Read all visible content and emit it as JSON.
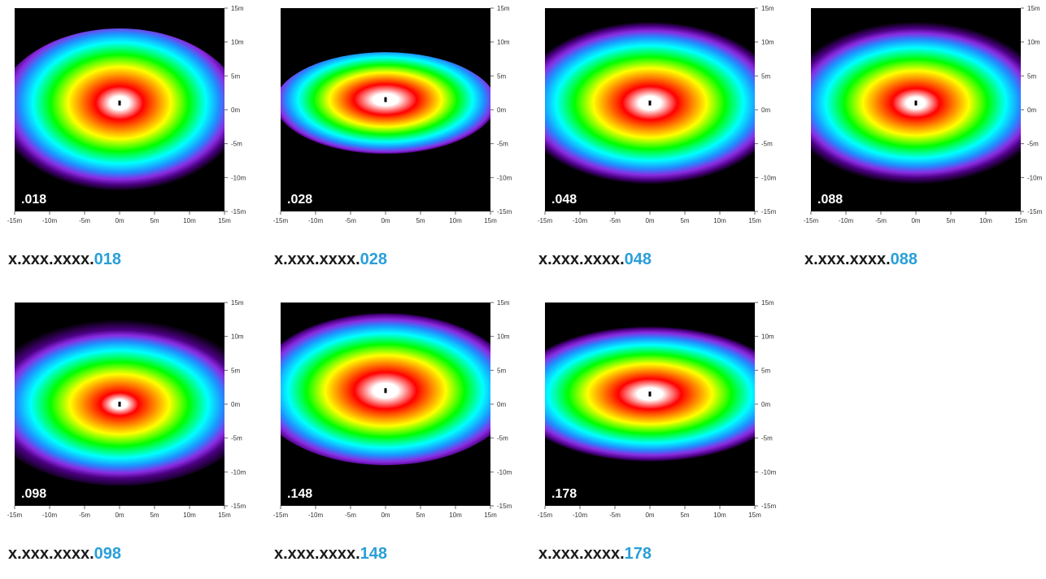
{
  "colors": {
    "caption_prefix": "#1a1a1a",
    "caption_suffix": "#2a9fd8",
    "plot_background": "#000000",
    "plot_label": "#ffffff",
    "scale": [
      "#000000",
      "#4b0082",
      "#8a2be2",
      "#1e90ff",
      "#00ffff",
      "#00ff00",
      "#ffff00",
      "#ff8c00",
      "#ff0000",
      "#ffffff"
    ]
  },
  "chart_data": [
    {
      "type": "heatmap",
      "label": ".018",
      "caption_prefix": "x.xxx.xxxx.",
      "caption_suffix": "018",
      "xlim": [
        -15,
        15
      ],
      "ylim": [
        -15,
        15
      ],
      "unit": "m",
      "x_ticks": [
        "-15m",
        "-10m",
        "-5m",
        "0m",
        "5m",
        "10m",
        "15m"
      ],
      "y_ticks": [
        "15m",
        "10m",
        "5m",
        "0m",
        "-5m",
        "-10m",
        "-15m"
      ],
      "pattern": {
        "center": [
          0,
          1
        ],
        "core_radius": 3.5,
        "extent_up": 11,
        "extent_down": 15,
        "extent_side": 18,
        "peak": 0.97
      }
    },
    {
      "type": "heatmap",
      "label": ".028",
      "caption_prefix": "x.xxx.xxxx.",
      "caption_suffix": "028",
      "xlim": [
        -15,
        15
      ],
      "ylim": [
        -15,
        15
      ],
      "unit": "m",
      "x_ticks": [
        "-15m",
        "-10m",
        "-5m",
        "0m",
        "5m",
        "10m",
        "15m"
      ],
      "y_ticks": [
        "15m",
        "10m",
        "5m",
        "0m",
        "-5m",
        "-10m",
        "-15m"
      ],
      "pattern": {
        "center": [
          0,
          1.5
        ],
        "core_radius": 4.5,
        "extent_up": 7,
        "extent_down": 9,
        "extent_side": 16,
        "peak": 1.0
      }
    },
    {
      "type": "heatmap",
      "label": ".048",
      "caption_prefix": "x.xxx.xxxx.",
      "caption_suffix": "048",
      "xlim": [
        -15,
        15
      ],
      "ylim": [
        -15,
        15
      ],
      "unit": "m",
      "x_ticks": [
        "-15m",
        "-10m",
        "-5m",
        "0m",
        "5m",
        "10m",
        "15m"
      ],
      "y_ticks": [
        "15m",
        "10m",
        "5m",
        "0m",
        "-5m",
        "-10m",
        "-15m"
      ],
      "pattern": {
        "center": [
          0,
          1
        ],
        "core_radius": 4,
        "extent_up": 12,
        "extent_down": 12,
        "extent_side": 19,
        "peak": 0.98
      }
    },
    {
      "type": "heatmap",
      "label": ".088",
      "caption_prefix": "x.xxx.xxxx.",
      "caption_suffix": "088",
      "xlim": [
        -15,
        15
      ],
      "ylim": [
        -15,
        15
      ],
      "unit": "m",
      "x_ticks": [
        "-15m",
        "-10m",
        "-5m",
        "0m",
        "5m",
        "10m",
        "15m"
      ],
      "y_ticks": [
        "15m",
        "10m",
        "5m",
        "0m",
        "-5m",
        "-10m",
        "-15m"
      ],
      "pattern": {
        "center": [
          0,
          1
        ],
        "core_radius": 3.5,
        "extent_up": 12,
        "extent_down": 12,
        "extent_side": 19,
        "peak": 0.97
      }
    },
    {
      "type": "heatmap",
      "label": ".098",
      "caption_prefix": "x.xxx.xxxx.",
      "caption_suffix": "098",
      "xlim": [
        -15,
        15
      ],
      "ylim": [
        -15,
        15
      ],
      "unit": "m",
      "x_ticks": [
        "-15m",
        "-10m",
        "-5m",
        "0m",
        "5m",
        "10m",
        "15m"
      ],
      "y_ticks": [
        "15m",
        "10m",
        "5m",
        "0m",
        "-5m",
        "-10m",
        "-15m"
      ],
      "pattern": {
        "center": [
          0,
          0
        ],
        "core_radius": 3,
        "extent_up": 13,
        "extent_down": 12,
        "extent_side": 20,
        "peak": 0.9
      }
    },
    {
      "type": "heatmap",
      "label": ".148",
      "caption_prefix": "x.xxx.xxxx.",
      "caption_suffix": "148",
      "xlim": [
        -15,
        15
      ],
      "ylim": [
        -15,
        15
      ],
      "unit": "m",
      "x_ticks": [
        "-15m",
        "-10m",
        "-5m",
        "0m",
        "5m",
        "10m",
        "15m"
      ],
      "y_ticks": [
        "15m",
        "10m",
        "5m",
        "0m",
        "-5m",
        "-10m",
        "-15m"
      ],
      "pattern": {
        "center": [
          0,
          2
        ],
        "core_radius": 4.5,
        "extent_up": 12,
        "extent_down": 11,
        "extent_side": 19,
        "peak": 0.99
      }
    },
    {
      "type": "heatmap",
      "label": ".178",
      "caption_prefix": "x.xxx.xxxx.",
      "caption_suffix": "178",
      "xlim": [
        -15,
        15
      ],
      "ylim": [
        -15,
        15
      ],
      "unit": "m",
      "x_ticks": [
        "-15m",
        "-10m",
        "-5m",
        "0m",
        "5m",
        "10m",
        "15m"
      ],
      "y_ticks": [
        "15m",
        "10m",
        "5m",
        "0m",
        "-5m",
        "-10m",
        "-15m"
      ],
      "pattern": {
        "center": [
          0,
          1.5
        ],
        "core_radius": 4.5,
        "extent_up": 10,
        "extent_down": 10,
        "extent_side": 20,
        "peak": 1.0
      }
    }
  ]
}
